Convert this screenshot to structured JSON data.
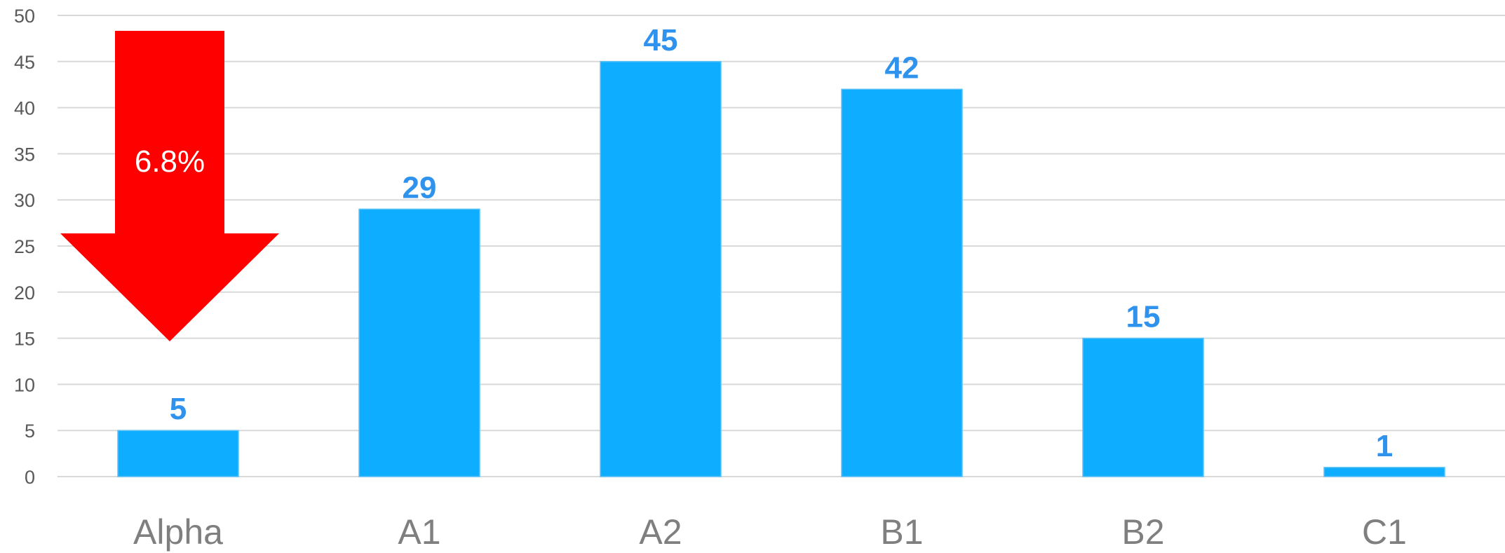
{
  "chart_data": {
    "type": "bar",
    "categories": [
      "Alpha",
      "A1",
      "A2",
      "B1",
      "B2",
      "C1"
    ],
    "values": [
      5,
      29,
      45,
      42,
      15,
      1
    ],
    "ylim": [
      0,
      50
    ],
    "yticks": [
      0,
      5,
      10,
      15,
      20,
      25,
      30,
      35,
      40,
      45,
      50
    ],
    "grid": true,
    "annotation": {
      "text": "6.8%",
      "shape": "down-arrow",
      "color": "#ff0000",
      "category": "Alpha"
    },
    "bar_color": "#0eadff",
    "label_color": "#2f93ee"
  }
}
